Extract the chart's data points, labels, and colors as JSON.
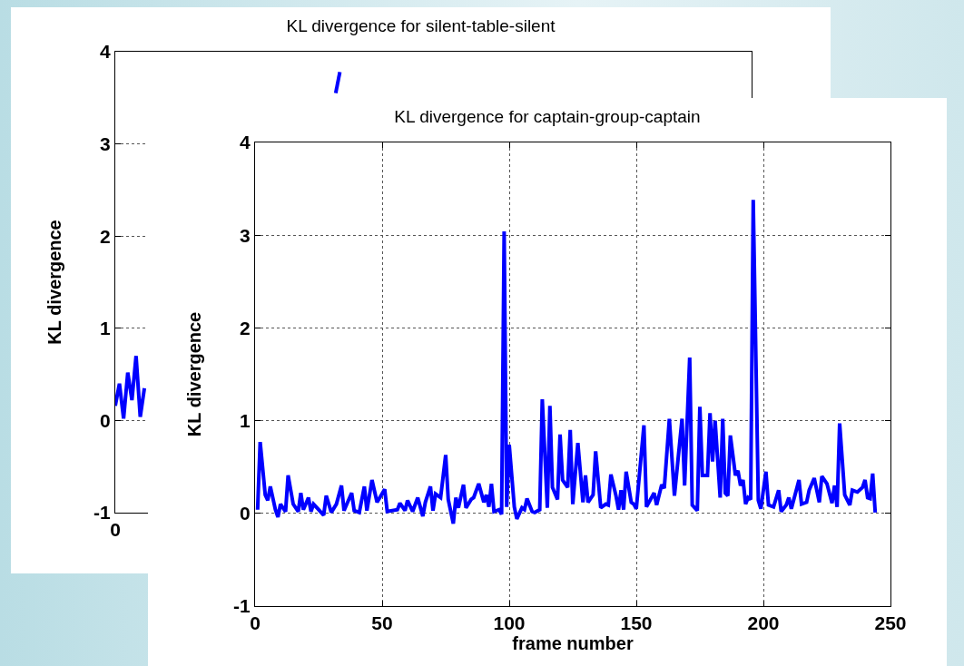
{
  "chart_data": [
    {
      "type": "line",
      "title": "KL divergence for silent-table-silent",
      "ylabel": "KL divergence",
      "ylim": [
        -1,
        4
      ],
      "yticks": [
        -1,
        0,
        1,
        2,
        3,
        4
      ],
      "grid": true,
      "marker": "none",
      "line_style": "solid",
      "categories": [
        "0",
        null,
        null,
        null,
        null,
        null,
        null,
        null,
        null,
        null,
        null,
        null,
        null,
        null,
        null,
        null,
        null,
        null,
        null,
        null,
        null,
        null,
        null,
        null,
        null,
        null,
        null,
        null,
        null,
        null,
        null,
        null,
        null,
        null,
        null,
        null,
        null,
        null,
        null,
        null,
        null,
        null,
        null,
        null,
        null,
        null,
        null,
        null,
        null,
        null,
        null,
        null,
        null,
        null,
        null,
        null,
        null,
        null,
        null,
        null,
        null,
        null,
        null,
        null,
        null,
        null,
        null,
        null,
        null,
        null,
        null,
        null,
        null,
        null,
        null,
        null,
        null,
        null,
        null,
        null,
        null,
        null,
        null,
        null,
        null,
        null,
        null,
        null,
        null,
        null,
        null,
        null,
        null,
        null,
        null,
        null,
        null,
        null,
        null,
        null,
        null,
        null,
        null,
        null,
        null,
        null,
        null,
        null,
        null,
        null,
        null,
        null,
        null,
        null,
        null,
        null,
        null,
        null,
        null,
        null,
        null,
        null,
        null,
        null,
        null,
        null,
        null,
        null,
        null,
        null,
        null,
        null,
        null,
        null,
        null,
        null,
        null,
        null,
        null,
        null,
        null,
        null,
        null,
        null,
        null,
        null,
        null,
        null,
        null,
        null,
        null,
        null,
        null,
        null
      ],
      "series": [
        {
          "color": "#0000ff",
          "values": [
            0.16,
            0.4,
            0.02,
            0.52,
            0.22,
            0.7,
            0.04,
            0.35,
            null,
            null,
            null,
            null,
            null,
            null,
            null,
            null,
            null,
            null,
            null,
            null,
            null,
            null,
            null,
            null,
            null,
            null,
            null,
            null,
            null,
            null,
            null,
            null,
            null,
            null,
            null,
            null,
            null,
            null,
            null,
            null,
            null,
            null,
            null,
            null,
            null,
            null,
            null,
            null,
            null,
            null,
            null,
            null,
            null,
            3.55,
            3.78,
            null,
            null,
            null,
            null,
            null,
            null,
            null,
            null,
            null,
            null,
            null,
            null,
            null,
            null,
            null,
            null,
            null,
            null,
            null,
            null,
            null,
            null,
            null,
            null,
            null,
            null,
            null,
            null,
            null,
            null,
            null,
            null,
            null,
            null,
            null,
            null,
            null,
            null,
            null,
            null,
            null,
            null,
            null,
            null,
            null,
            null,
            null,
            null,
            null,
            null,
            null,
            null,
            null,
            null,
            null,
            null,
            null,
            null,
            null,
            null,
            null,
            null,
            null,
            null,
            null,
            null,
            null,
            null,
            null,
            null,
            null,
            null,
            null,
            null,
            null,
            null,
            null,
            null,
            null,
            null,
            null,
            null,
            null,
            null,
            null,
            null,
            null,
            null,
            null,
            null,
            null,
            null,
            null,
            null,
            null,
            null,
            null,
            null,
            null
          ]
        }
      ]
    },
    {
      "type": "line",
      "title": "KL divergence for captain-group-captain",
      "xlabel": "frame number",
      "ylabel": "KL divergence",
      "xlim": [
        0,
        250
      ],
      "xticks": [
        0,
        50,
        100,
        150,
        200,
        250
      ],
      "ylim": [
        -1,
        4
      ],
      "yticks": [
        -1,
        0,
        1,
        2,
        3,
        4
      ],
      "grid": true,
      "marker": "none",
      "line_style": "solid",
      "x": [
        1,
        2,
        4,
        5,
        6,
        8,
        9,
        10,
        12,
        13,
        15,
        17,
        18,
        19,
        21,
        22,
        23,
        25,
        27,
        28,
        30,
        32,
        34,
        35,
        38,
        39,
        41,
        43,
        44,
        46,
        48,
        51,
        52,
        56,
        57,
        59,
        60,
        62,
        64,
        66,
        67,
        69,
        70,
        71,
        73,
        75,
        76,
        78,
        79,
        80,
        82,
        83,
        85,
        86,
        88,
        90,
        91,
        92,
        93,
        94,
        96,
        97,
        98,
        99,
        100,
        102,
        103,
        105,
        106,
        107,
        109,
        110,
        112,
        113,
        115,
        116,
        117,
        119,
        120,
        121,
        123,
        124,
        125,
        127,
        129,
        130,
        131,
        133,
        134,
        136,
        138,
        139,
        140,
        142,
        143,
        144,
        145,
        146,
        148,
        149,
        150,
        153,
        154,
        157,
        158,
        160,
        161,
        163,
        165,
        168,
        169,
        171,
        172,
        174,
        175,
        176,
        178,
        179,
        180,
        181,
        183,
        184,
        185,
        186,
        187,
        189,
        190,
        191,
        192,
        193,
        194,
        195,
        196,
        198,
        199,
        201,
        202,
        204,
        206,
        207,
        209,
        210,
        211,
        214,
        215,
        217,
        218,
        220,
        222,
        223,
        225,
        227,
        228,
        229,
        230,
        232,
        234,
        235,
        237,
        239,
        240,
        241,
        242,
        243,
        244
      ],
      "series": [
        {
          "color": "#0000ff",
          "values": [
            0.04,
            0.77,
            0.2,
            0.14,
            0.29,
            0.04,
            -0.04,
            0.1,
            0.02,
            0.41,
            0.1,
            0.02,
            0.22,
            0.04,
            0.17,
            0.02,
            0.1,
            0.04,
            -0.02,
            0.19,
            0.01,
            0.1,
            0.3,
            0.03,
            0.22,
            0.03,
            0.01,
            0.29,
            0.03,
            0.36,
            0.12,
            0.26,
            0.02,
            0.04,
            0.11,
            0.03,
            0.14,
            0.02,
            0.17,
            -0.03,
            0.12,
            0.29,
            0.03,
            0.21,
            0.17,
            0.63,
            0.15,
            -0.11,
            0.17,
            0.06,
            0.31,
            0.06,
            0.15,
            0.17,
            0.32,
            0.12,
            0.2,
            0.07,
            0.32,
            0.02,
            0.04,
            -0.01,
            3.04,
            0.07,
            0.74,
            0.07,
            -0.06,
            0.06,
            0.04,
            0.16,
            0.02,
            0.01,
            0.04,
            1.23,
            0.06,
            1.16,
            0.28,
            0.15,
            0.85,
            0.36,
            0.28,
            0.9,
            0.1,
            0.76,
            0.12,
            0.41,
            0.12,
            0.2,
            0.67,
            0.06,
            0.1,
            0.09,
            0.42,
            0.19,
            0.04,
            0.25,
            0.04,
            0.45,
            0.12,
            0.1,
            0.05,
            0.95,
            0.07,
            0.22,
            0.09,
            0.31,
            0.27,
            1.02,
            0.19,
            1.02,
            0.3,
            1.68,
            0.09,
            0.03,
            1.15,
            0.41,
            0.41,
            1.08,
            0.56,
            1.0,
            0.17,
            1.02,
            0.22,
            0.19,
            0.84,
            0.41,
            0.46,
            0.3,
            0.36,
            0.1,
            0.17,
            0.15,
            3.38,
            0.14,
            0.05,
            0.45,
            0.09,
            0.07,
            0.25,
            0.02,
            0.09,
            0.17,
            0.05,
            0.36,
            0.1,
            0.12,
            0.25,
            0.38,
            0.12,
            0.4,
            0.32,
            0.11,
            0.3,
            0.07,
            0.97,
            0.2,
            0.09,
            0.25,
            0.23,
            0.28,
            0.36,
            0.17,
            0.16,
            0.43,
            0.01
          ]
        }
      ]
    }
  ]
}
